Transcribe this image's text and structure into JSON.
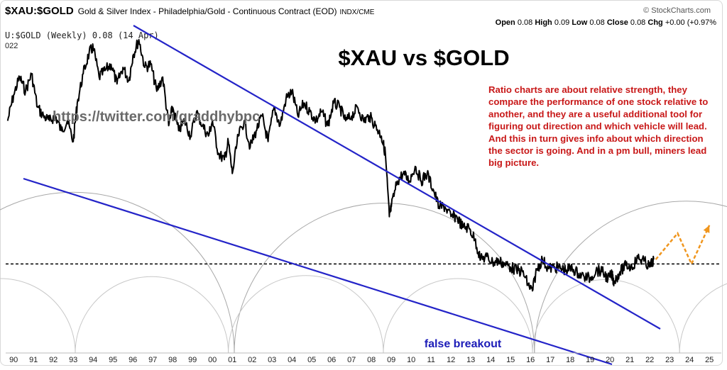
{
  "header": {
    "symbol": "$XAU:$GOLD",
    "description": "Gold & Silver Index - Philadelphia/Gold - Continuous Contract (EOD)",
    "exchange": "INDX/CME",
    "copyright": "© StockCharts.com",
    "ohlc": {
      "open_label": "Open",
      "open": "0.08",
      "high_label": "High",
      "high": "0.09",
      "low_label": "Low",
      "low": "0.08",
      "close_label": "Close",
      "close": "0.08",
      "chg_label": "Chg",
      "chg": "+0.00 (+0.97%"
    },
    "series_label": "U:$GOLD (Weekly) 0.08 (14 Apr)",
    "year_label": "022"
  },
  "chart_data": {
    "type": "line",
    "title": "$XAU vs $GOLD",
    "watermark": "https://twitter.com/graddhybpc",
    "annotation": "Ratio charts are about relative strength, they compare the performance of one stock relative to another, and they are a useful additional tool for figuring out direction and which vehicle will lead. And this in turn gives info about which direction the sector is going. And in a pm bull, miners lead big picture.",
    "breakout_label": "false breakout",
    "x_ticks": [
      "90",
      "91",
      "92",
      "93",
      "94",
      "95",
      "96",
      "97",
      "98",
      "99",
      "00",
      "01",
      "02",
      "03",
      "04",
      "05",
      "06",
      "07",
      "08",
      "09",
      "10",
      "11",
      "12",
      "13",
      "14",
      "15",
      "16",
      "17",
      "18",
      "19",
      "20",
      "21",
      "22",
      "23",
      "24",
      "25"
    ],
    "x_domain": [
      1989.6,
      2025.6
    ],
    "y_domain": [
      0.04,
      0.5
    ],
    "y_scale": "log",
    "grid": false,
    "series": [
      {
        "x": [
          1989.7,
          1990.0,
          1990.3,
          1990.6,
          1990.9,
          1991.2,
          1991.5,
          1991.8,
          1992.1,
          1992.4,
          1992.7,
          1993.0,
          1993.2,
          1993.5,
          1993.8,
          1994.0,
          1994.3,
          1994.6,
          1994.9,
          1995.2,
          1995.5,
          1995.8,
          1996.0,
          1996.3,
          1996.6,
          1996.9,
          1997.2,
          1997.5,
          1997.8,
          1998.0,
          1998.3,
          1998.6,
          1998.9,
          1999.2,
          1999.5,
          1999.8,
          2000.0,
          2000.3,
          2000.6,
          2000.8,
          2001.0,
          2001.3,
          2001.6,
          2001.9,
          2002.2,
          2002.5,
          2002.8,
          2003.1,
          2003.4,
          2003.7,
          2004.0,
          2004.3,
          2004.6,
          2004.9,
          2005.2,
          2005.5,
          2005.8,
          2006.1,
          2006.4,
          2006.7,
          2007.0,
          2007.3,
          2007.6,
          2007.9,
          2008.2,
          2008.5,
          2008.7,
          2008.9,
          2009.0,
          2009.3,
          2009.6,
          2009.9,
          2010.2,
          2010.5,
          2010.8,
          2011.1,
          2011.4,
          2011.7,
          2012.0,
          2012.3,
          2012.6,
          2012.9,
          2013.2,
          2013.5,
          2013.8,
          2014.1,
          2014.4,
          2014.7,
          2015.0,
          2015.3,
          2015.6,
          2015.9,
          2016.1,
          2016.3,
          2016.6,
          2016.9,
          2017.2,
          2017.5,
          2017.8,
          2018.1,
          2018.4,
          2018.7,
          2019.0,
          2019.3,
          2019.6,
          2019.9,
          2020.1,
          2020.2,
          2020.5,
          2020.8,
          2021.1,
          2021.4,
          2021.7,
          2022.0,
          2022.2
        ],
        "y": [
          0.26,
          0.32,
          0.37,
          0.33,
          0.38,
          0.29,
          0.27,
          0.26,
          0.27,
          0.24,
          0.26,
          0.22,
          0.3,
          0.38,
          0.45,
          0.47,
          0.37,
          0.39,
          0.41,
          0.35,
          0.4,
          0.36,
          0.44,
          0.5,
          0.4,
          0.41,
          0.33,
          0.37,
          0.25,
          0.29,
          0.24,
          0.26,
          0.23,
          0.28,
          0.25,
          0.23,
          0.26,
          0.2,
          0.19,
          0.22,
          0.17,
          0.23,
          0.26,
          0.21,
          0.24,
          0.27,
          0.22,
          0.29,
          0.25,
          0.31,
          0.33,
          0.27,
          0.3,
          0.28,
          0.26,
          0.28,
          0.25,
          0.3,
          0.29,
          0.26,
          0.27,
          0.29,
          0.26,
          0.27,
          0.25,
          0.23,
          0.2,
          0.12,
          0.13,
          0.16,
          0.17,
          0.16,
          0.18,
          0.16,
          0.17,
          0.15,
          0.13,
          0.13,
          0.12,
          0.12,
          0.11,
          0.11,
          0.1,
          0.085,
          0.087,
          0.083,
          0.084,
          0.082,
          0.08,
          0.078,
          0.077,
          0.069,
          0.066,
          0.078,
          0.085,
          0.079,
          0.08,
          0.079,
          0.078,
          0.079,
          0.076,
          0.074,
          0.073,
          0.078,
          0.077,
          0.073,
          0.075,
          0.071,
          0.077,
          0.081,
          0.08,
          0.086,
          0.084,
          0.08,
          0.085
        ]
      }
    ],
    "ref_level": 0.082,
    "forecast_x": [
      2022.3,
      2023.4,
      2024.1,
      2025.0
    ],
    "forecast_y": [
      0.085,
      0.105,
      0.082,
      0.112
    ]
  },
  "colors": {
    "price": "#000000",
    "trendline": "#2424c8",
    "annotation": "#c81818",
    "watermark": "#6a6a6a",
    "cycles": "#a8a8a8",
    "forecast": "#f0961e"
  }
}
